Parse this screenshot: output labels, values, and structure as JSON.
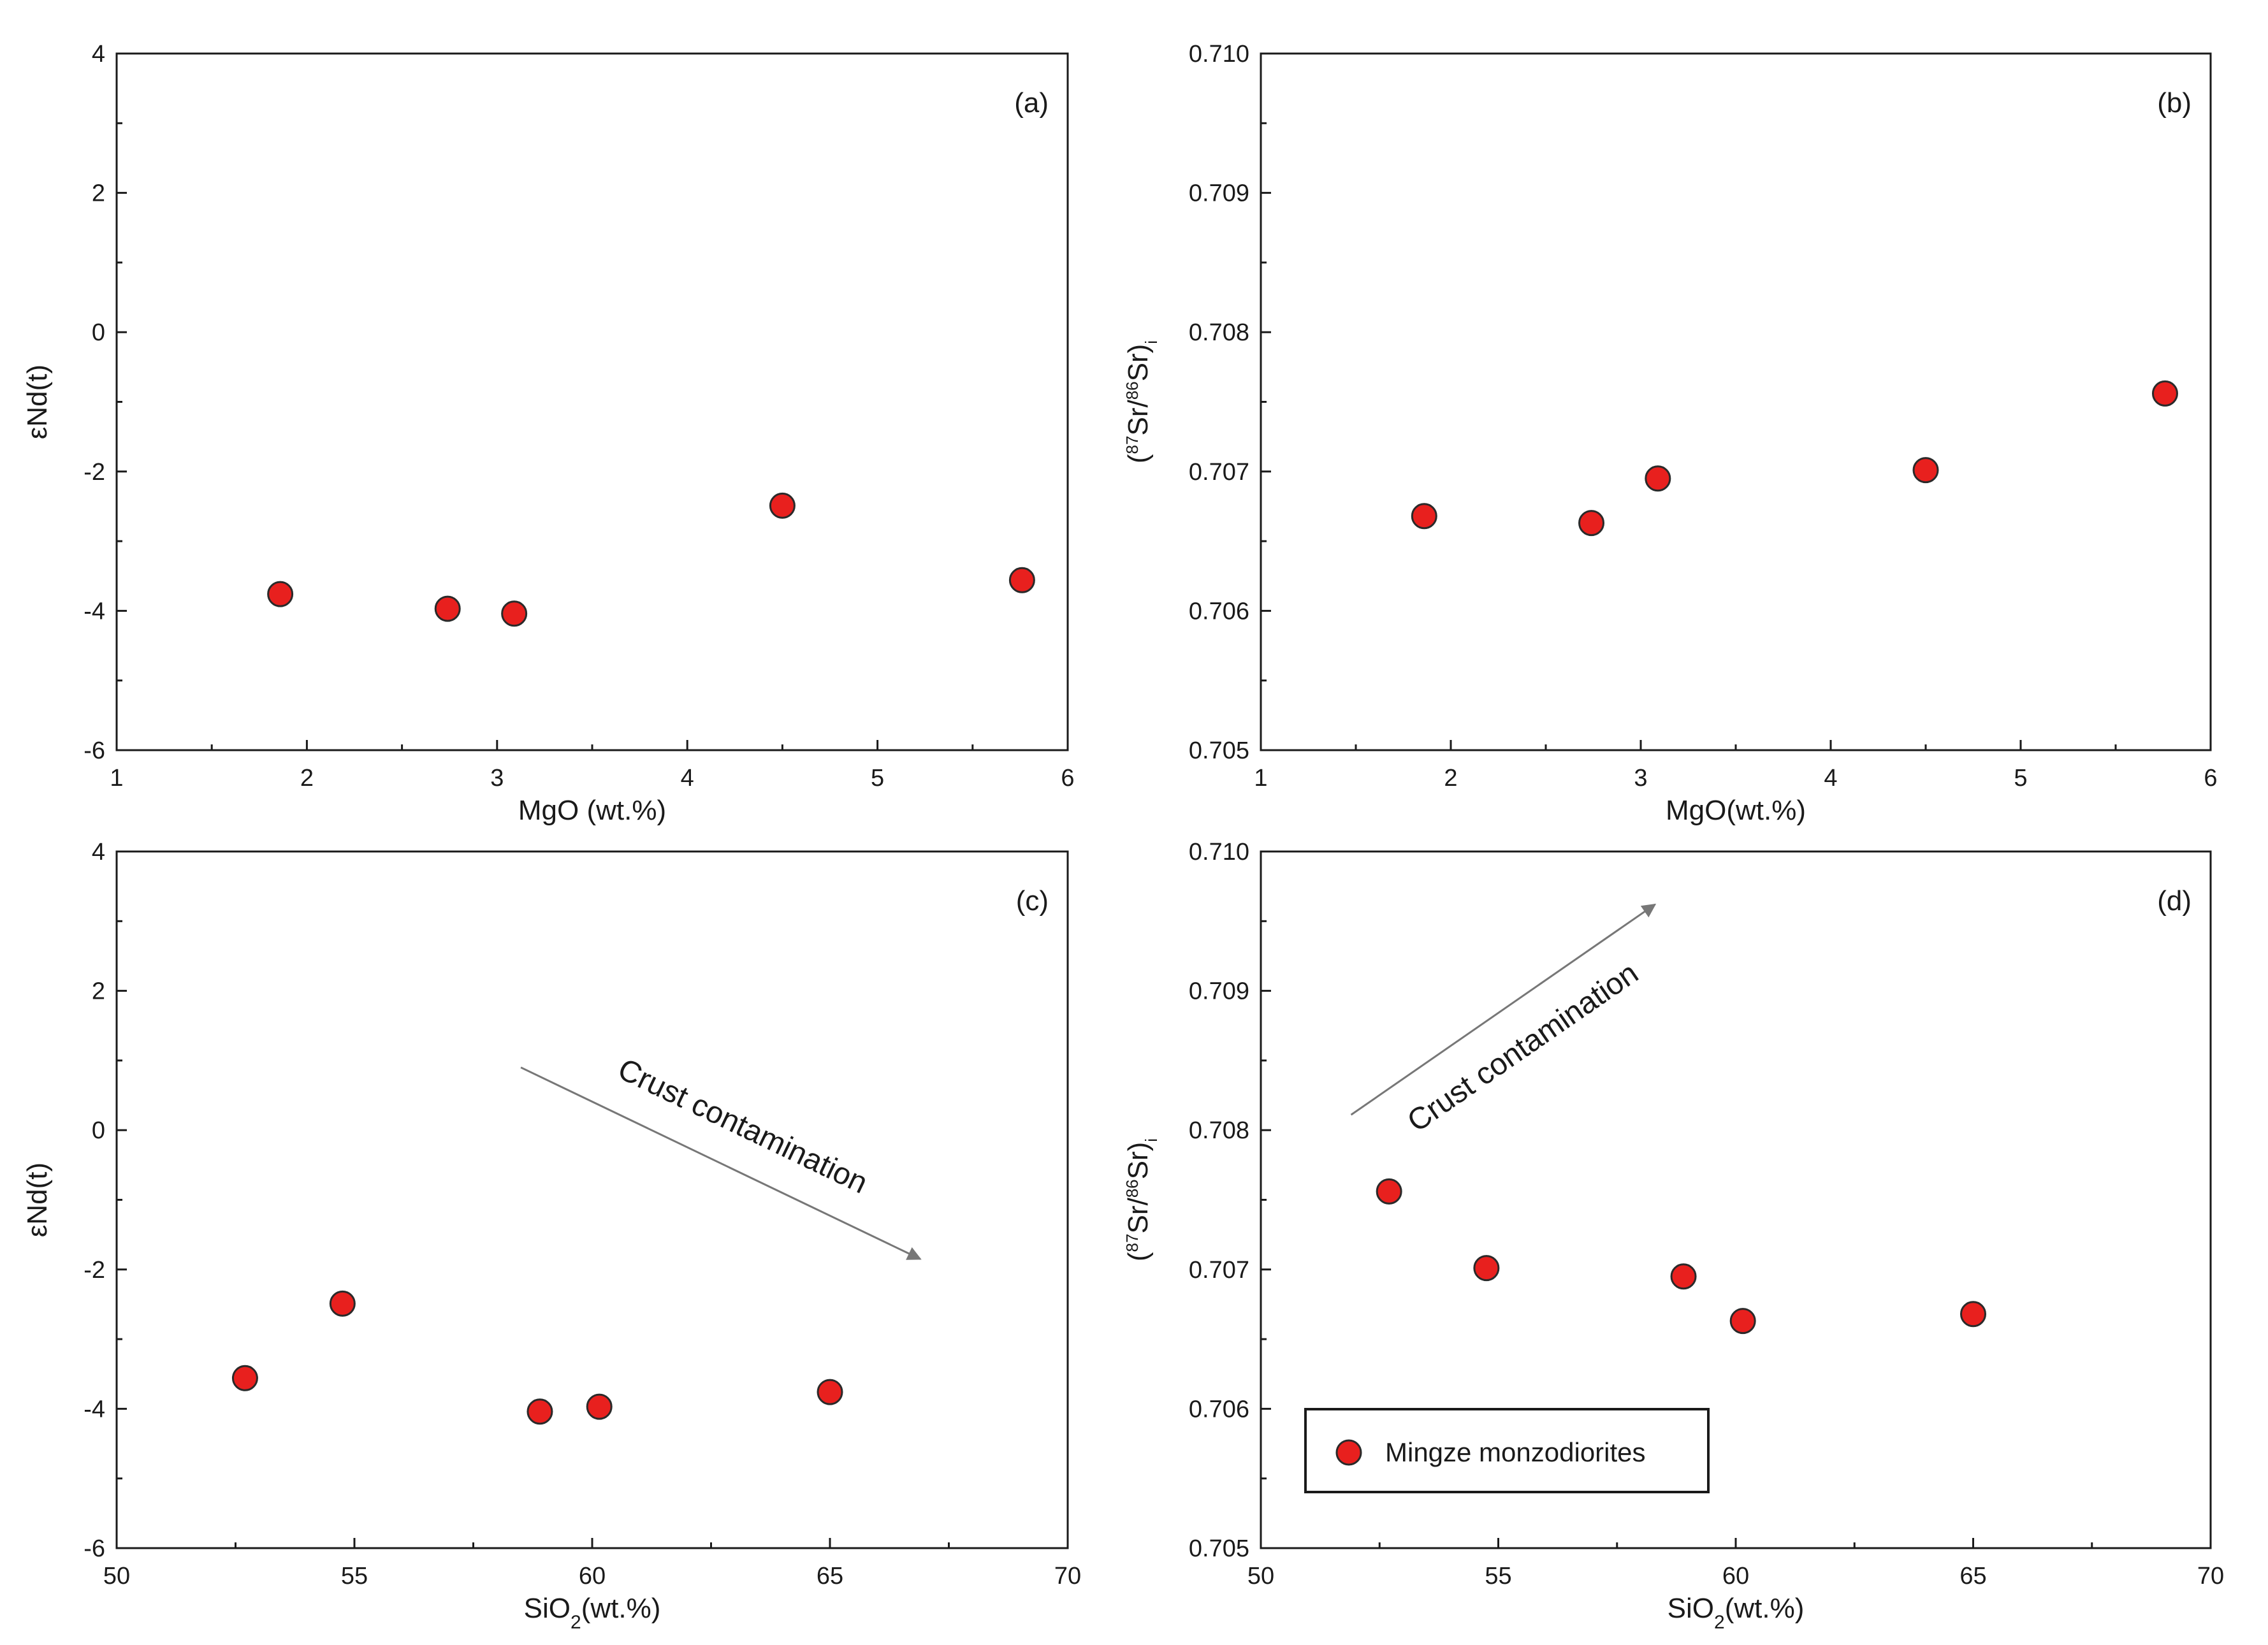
{
  "figure_caption": "",
  "colors": {
    "marker_fill": "#e8201e",
    "marker_stroke": "#2a2a2a",
    "axis": "#1a1a1a",
    "arrow": "#777777"
  },
  "legend": {
    "label": "Mingze  monzodiorites"
  },
  "chart_data": [
    {
      "id": "a",
      "type": "scatter",
      "panel_label": "(a)",
      "xlabel": "MgO (wt.%)",
      "ylabel": "εNd(t)",
      "xlim": [
        1,
        6
      ],
      "ylim": [
        -6,
        4
      ],
      "xticks": [
        1,
        2,
        3,
        4,
        5,
        6
      ],
      "xtick_labels": [
        "1",
        "2",
        "3",
        "4",
        "5",
        "6"
      ],
      "yticks": [
        -6,
        -4,
        -2,
        0,
        2,
        4
      ],
      "ytick_labels": [
        "-6",
        "-4",
        "-2",
        "0",
        "2",
        "4"
      ],
      "x_minor_step": 0.5,
      "y_minor_step": 1,
      "series": [
        {
          "name": "Mingze  monzodiorites",
          "x": [
            1.86,
            2.74,
            3.09,
            4.5,
            5.76
          ],
          "y": [
            -3.76,
            -3.97,
            -4.04,
            -2.49,
            -3.56
          ]
        }
      ]
    },
    {
      "id": "b",
      "type": "scatter",
      "panel_label": "(b)",
      "xlabel": "MgO(wt.%)",
      "ylabel": "(87Sr/86Sr)i",
      "xlim": [
        1,
        6
      ],
      "ylim": [
        0.705,
        0.71
      ],
      "xticks": [
        1,
        2,
        3,
        4,
        5,
        6
      ],
      "xtick_labels": [
        "1",
        "2",
        "3",
        "4",
        "5",
        "6"
      ],
      "yticks": [
        0.705,
        0.706,
        0.707,
        0.708,
        0.709,
        0.71
      ],
      "ytick_labels": [
        "0.705",
        "0.706",
        "0.707",
        "0.708",
        "0.709",
        "0.710"
      ],
      "x_minor_step": 0.5,
      "y_minor_step": 0.0005,
      "series": [
        {
          "name": "Mingze  monzodiorites",
          "x": [
            1.86,
            2.74,
            3.09,
            4.5,
            5.76
          ],
          "y": [
            0.70668,
            0.70663,
            0.70695,
            0.70701,
            0.70756
          ]
        }
      ]
    },
    {
      "id": "c",
      "type": "scatter",
      "panel_label": "(c)",
      "xlabel": "SiO2(wt.%)",
      "ylabel": "εNd(t)",
      "xlim": [
        50,
        70
      ],
      "ylim": [
        -6,
        4
      ],
      "xticks": [
        50,
        55,
        60,
        65,
        70
      ],
      "xtick_labels": [
        "50",
        "55",
        "60",
        "65",
        "70"
      ],
      "yticks": [
        -6,
        -4,
        -2,
        0,
        2,
        4
      ],
      "ytick_labels": [
        "-6",
        "-4",
        "-2",
        "0",
        "2",
        "4"
      ],
      "x_minor_step": 2.5,
      "y_minor_step": 1,
      "series": [
        {
          "name": "Mingze  monzodiorites",
          "x": [
            52.7,
            54.75,
            58.9,
            60.15,
            65.0
          ],
          "y": [
            -3.56,
            -2.49,
            -4.04,
            -3.97,
            -3.76
          ]
        }
      ],
      "annotation": {
        "text": "Crust contamination",
        "arrow_from": [
          58.5,
          0.9
        ],
        "arrow_to": [
          66.9,
          -1.85
        ]
      }
    },
    {
      "id": "d",
      "type": "scatter",
      "panel_label": "(d)",
      "xlabel": "SiO2(wt.%)",
      "ylabel": "(87Sr/86Sr)i",
      "xlim": [
        50,
        70
      ],
      "ylim": [
        0.705,
        0.71
      ],
      "xticks": [
        50,
        55,
        60,
        65,
        70
      ],
      "xtick_labels": [
        "50",
        "55",
        "60",
        "65",
        "70"
      ],
      "yticks": [
        0.705,
        0.706,
        0.707,
        0.708,
        0.709,
        0.71
      ],
      "ytick_labels": [
        "0.705",
        "0.706",
        "0.707",
        "0.708",
        "0.709",
        "0.710"
      ],
      "x_minor_step": 2.5,
      "y_minor_step": 0.0005,
      "series": [
        {
          "name": "Mingze  monzodiorites",
          "x": [
            52.7,
            54.75,
            58.9,
            60.15,
            65.0
          ],
          "y": [
            0.70756,
            0.70701,
            0.70695,
            0.70663,
            0.70668
          ]
        }
      ],
      "annotation": {
        "text": "Crust contamination",
        "arrow_from": [
          51.9,
          0.70811
        ],
        "arrow_to": [
          58.3,
          0.70962
        ]
      },
      "legend": {
        "position": "bottom-left"
      }
    }
  ]
}
